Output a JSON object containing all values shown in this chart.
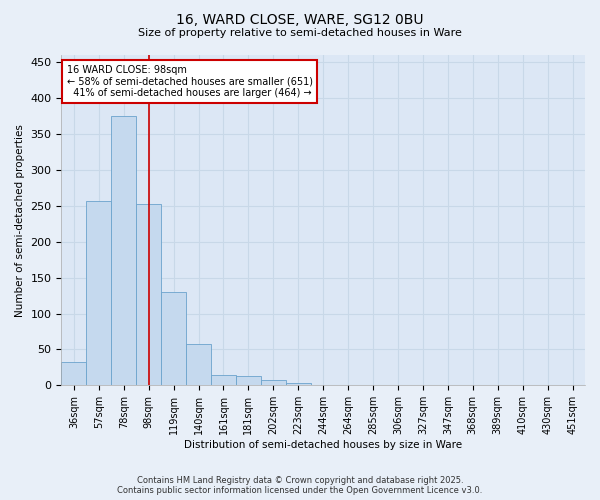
{
  "title1": "16, WARD CLOSE, WARE, SG12 0BU",
  "title2": "Size of property relative to semi-detached houses in Ware",
  "xlabel": "Distribution of semi-detached houses by size in Ware",
  "ylabel": "Number of semi-detached properties",
  "bar_labels": [
    "36sqm",
    "57sqm",
    "78sqm",
    "98sqm",
    "119sqm",
    "140sqm",
    "161sqm",
    "181sqm",
    "202sqm",
    "223sqm",
    "244sqm",
    "264sqm",
    "285sqm",
    "306sqm",
    "327sqm",
    "347sqm",
    "368sqm",
    "389sqm",
    "410sqm",
    "430sqm",
    "451sqm"
  ],
  "bar_values": [
    33,
    257,
    375,
    252,
    130,
    57,
    15,
    13,
    7,
    3,
    0,
    0,
    0,
    0,
    0,
    0,
    0,
    0,
    0,
    0,
    0
  ],
  "bar_color": "#c5d9ee",
  "bar_edgecolor": "#6ba3cc",
  "vline_x_index": 3,
  "vline_color": "#cc0000",
  "annotation_text": "16 WARD CLOSE: 98sqm\n← 58% of semi-detached houses are smaller (651)\n  41% of semi-detached houses are larger (464) →",
  "annotation_box_edgecolor": "#cc0000",
  "ylim": [
    0,
    460
  ],
  "yticks": [
    0,
    50,
    100,
    150,
    200,
    250,
    300,
    350,
    400,
    450
  ],
  "footer1": "Contains HM Land Registry data © Crown copyright and database right 2025.",
  "footer2": "Contains public sector information licensed under the Open Government Licence v3.0.",
  "bg_color": "#e8eff8",
  "plot_bg_color": "#dce7f5",
  "grid_color": "#c8d8e8"
}
